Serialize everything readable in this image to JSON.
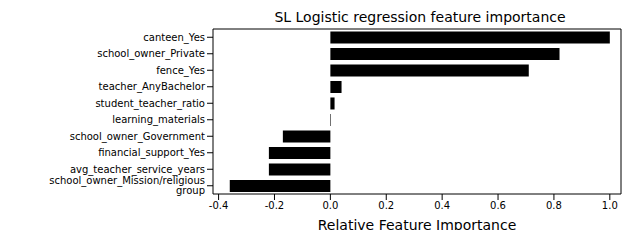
{
  "chart_data": {
    "type": "bar",
    "orientation": "horizontal",
    "title": "SL Logistic regression feature importance",
    "x_label": "Relative Feature Importance",
    "categories": [
      "canteen_Yes",
      "school_owner_Private",
      "fence_Yes",
      "teacher_AnyBachelor",
      "student_teacher_ratio",
      "learning_materials",
      "school_owner_Government",
      "financial_support_Yes",
      "avg_teacher_service_years",
      "school_owner_Mission/religious group"
    ],
    "values": [
      1.0,
      0.82,
      0.71,
      0.04,
      0.015,
      0.002,
      -0.17,
      -0.22,
      -0.22,
      -0.36
    ],
    "color": "#000000",
    "xlim": [
      -0.42,
      1.04
    ],
    "xticks": [
      -0.4,
      -0.2,
      {
        "value": 0,
        "label": "0.0"
      },
      0.2,
      0.4,
      0.6,
      0.8,
      {
        "value": 1,
        "label": "1.0"
      }
    ],
    "grid": false
  }
}
